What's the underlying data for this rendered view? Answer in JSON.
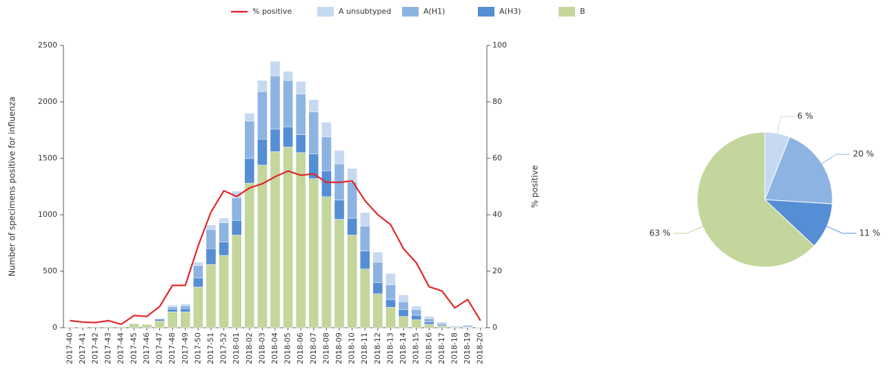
{
  "chart_data": [
    {
      "type": "bar",
      "stacked": true,
      "legend": "top",
      "ylabel": "Number of specimens positive for influenza",
      "y2label": "% positive",
      "categories": [
        "2017-40",
        "2017-41",
        "2017-42",
        "2017-43",
        "2017-44",
        "2017-45",
        "2017-46",
        "2017-47",
        "2017-48",
        "2017-49",
        "2017-50",
        "2017-51",
        "2017-52",
        "2018-01",
        "2018-02",
        "2018-03",
        "2018-04",
        "2018-05",
        "2018-06",
        "2018-07",
        "2018-08",
        "2018-09",
        "2018-10",
        "2018-11",
        "2018-12",
        "2018-13",
        "2018-14",
        "2018-15",
        "2018-16",
        "2018-17",
        "2018-18",
        "2018-19",
        "2018-20"
      ],
      "series": [
        {
          "name": "% positive",
          "type": "line",
          "axis": "y2",
          "color": "#e3262a",
          "values": [
            2.5,
            2,
            1.8,
            2.5,
            1.2,
            4.3,
            4,
            7.5,
            15,
            15,
            29,
            41,
            48.5,
            46.5,
            49.5,
            51,
            53.5,
            55.5,
            54,
            54.5,
            51.5,
            51.5,
            52,
            45,
            40,
            36.5,
            28,
            23,
            14.5,
            13,
            7,
            10,
            2.5
          ]
        },
        {
          "name": "A unsubtyped",
          "color": "#c6d9f1",
          "values": [
            2,
            1,
            1,
            1,
            1,
            2,
            3,
            5,
            15,
            15,
            30,
            40,
            40,
            60,
            70,
            100,
            130,
            80,
            110,
            110,
            130,
            120,
            120,
            120,
            90,
            100,
            60,
            30,
            20,
            10,
            5,
            5,
            2
          ]
        },
        {
          "name": "A(H1)",
          "color": "#8db3e2",
          "values": [
            0,
            0,
            0,
            0,
            0,
            1,
            2,
            5,
            20,
            25,
            110,
            170,
            170,
            200,
            330,
            420,
            470,
            410,
            360,
            370,
            300,
            320,
            320,
            220,
            180,
            130,
            70,
            50,
            30,
            15,
            5,
            10,
            2
          ]
        },
        {
          "name": "A(H3)",
          "color": "#558ed5",
          "values": [
            0,
            0,
            1,
            1,
            1,
            2,
            3,
            15,
            25,
            30,
            80,
            140,
            120,
            130,
            220,
            230,
            200,
            180,
            160,
            220,
            230,
            170,
            150,
            160,
            100,
            70,
            60,
            40,
            20,
            10,
            5,
            5,
            2
          ]
        },
        {
          "name": "B",
          "color": "#c3d69b",
          "values": [
            5,
            4,
            8,
            8,
            8,
            35,
            30,
            60,
            140,
            140,
            360,
            560,
            640,
            820,
            1280,
            1440,
            1560,
            1600,
            1550,
            1320,
            1160,
            960,
            820,
            520,
            300,
            180,
            100,
            70,
            30,
            15,
            5,
            5,
            2
          ]
        }
      ],
      "ylim": [
        0,
        2500
      ],
      "yticks": [
        0,
        500,
        1000,
        1500,
        2000,
        2500
      ],
      "y2lim": [
        0,
        100
      ],
      "y2ticks": [
        0,
        20,
        40,
        60,
        80,
        100
      ]
    },
    {
      "type": "pie",
      "values": [
        6,
        20,
        11,
        63
      ],
      "value_labels": [
        "6 %",
        "20 %",
        "11 %",
        "63 %"
      ],
      "colors": [
        "#c6d9f1",
        "#8db3e2",
        "#558ed5",
        "#c3d69b"
      ]
    }
  ]
}
